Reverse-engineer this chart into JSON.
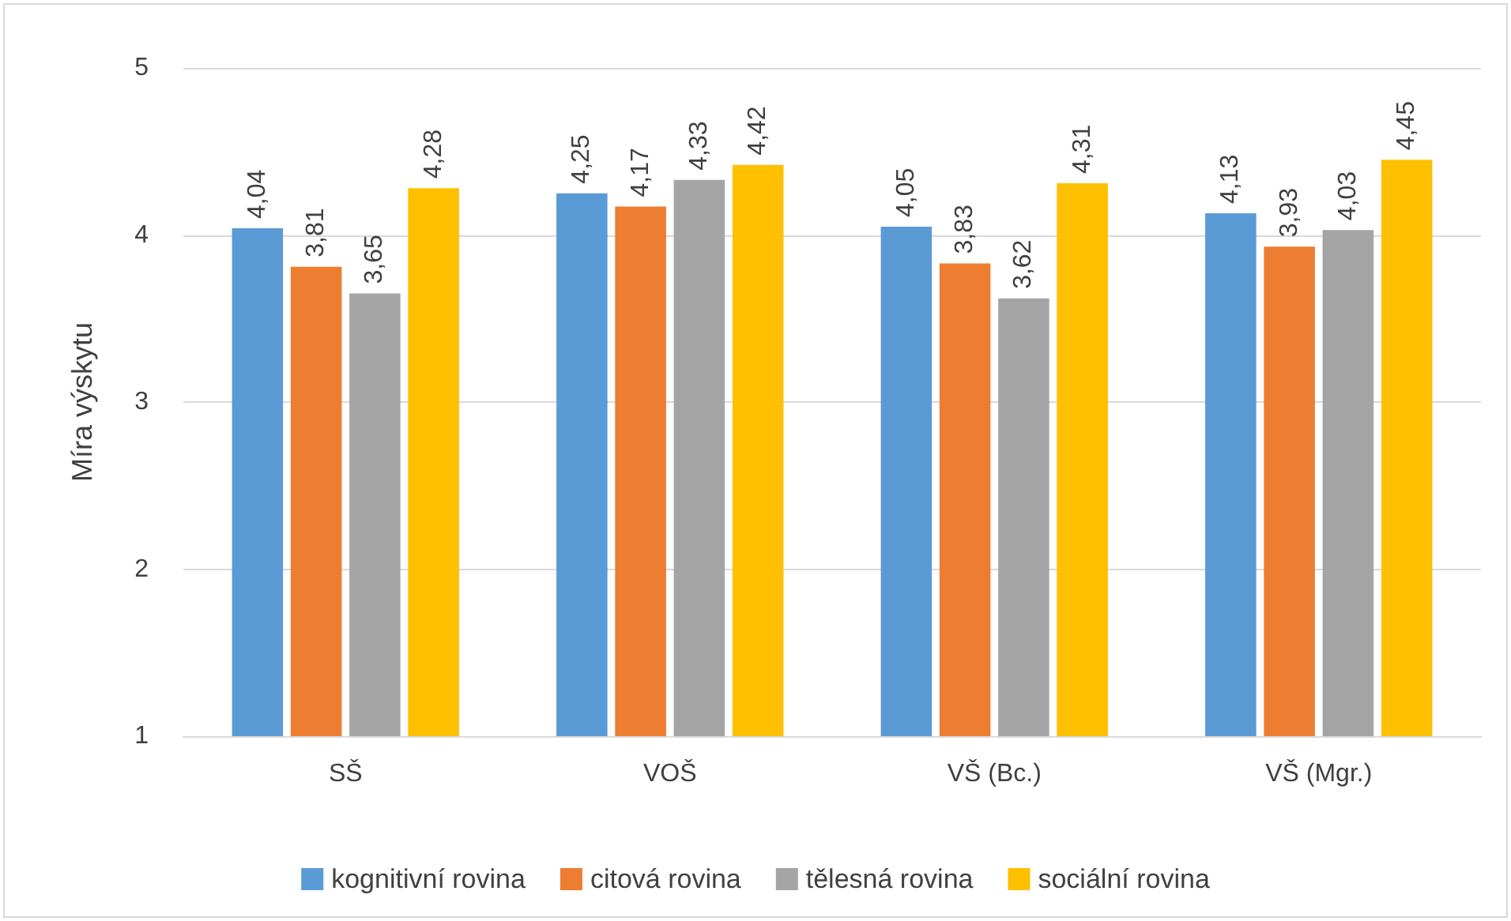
{
  "chart_data": {
    "type": "bar",
    "ylabel": "Míra výskytu",
    "categories": [
      "SŠ",
      "VOŠ",
      "VŠ (Bc.)",
      "VŠ (Mgr.)"
    ],
    "series": [
      {
        "name": "kognitivní rovina",
        "color": "#5b9bd5",
        "values": [
          4.04,
          4.25,
          4.05,
          4.13
        ],
        "value_labels": [
          "4,04",
          "4,25",
          "4,05",
          "4,13"
        ]
      },
      {
        "name": "citová rovina",
        "color": "#ed7d31",
        "values": [
          3.81,
          4.17,
          3.83,
          3.93
        ],
        "value_labels": [
          "3,81",
          "4,17",
          "3,83",
          "3,93"
        ]
      },
      {
        "name": "tělesná rovina",
        "color": "#a5a5a5",
        "values": [
          3.65,
          4.33,
          3.62,
          4.03
        ],
        "value_labels": [
          "3,65",
          "4,33",
          "3,62",
          "4,03"
        ]
      },
      {
        "name": "sociální rovina",
        "color": "#ffc000",
        "values": [
          4.28,
          4.42,
          4.31,
          4.45
        ],
        "value_labels": [
          "4,28",
          "4,42",
          "4,31",
          "4,45"
        ]
      }
    ],
    "ylim": [
      1,
      5
    ],
    "yticks": [
      1,
      2,
      3,
      4,
      5
    ],
    "grid": "y",
    "legend": "bottom"
  }
}
